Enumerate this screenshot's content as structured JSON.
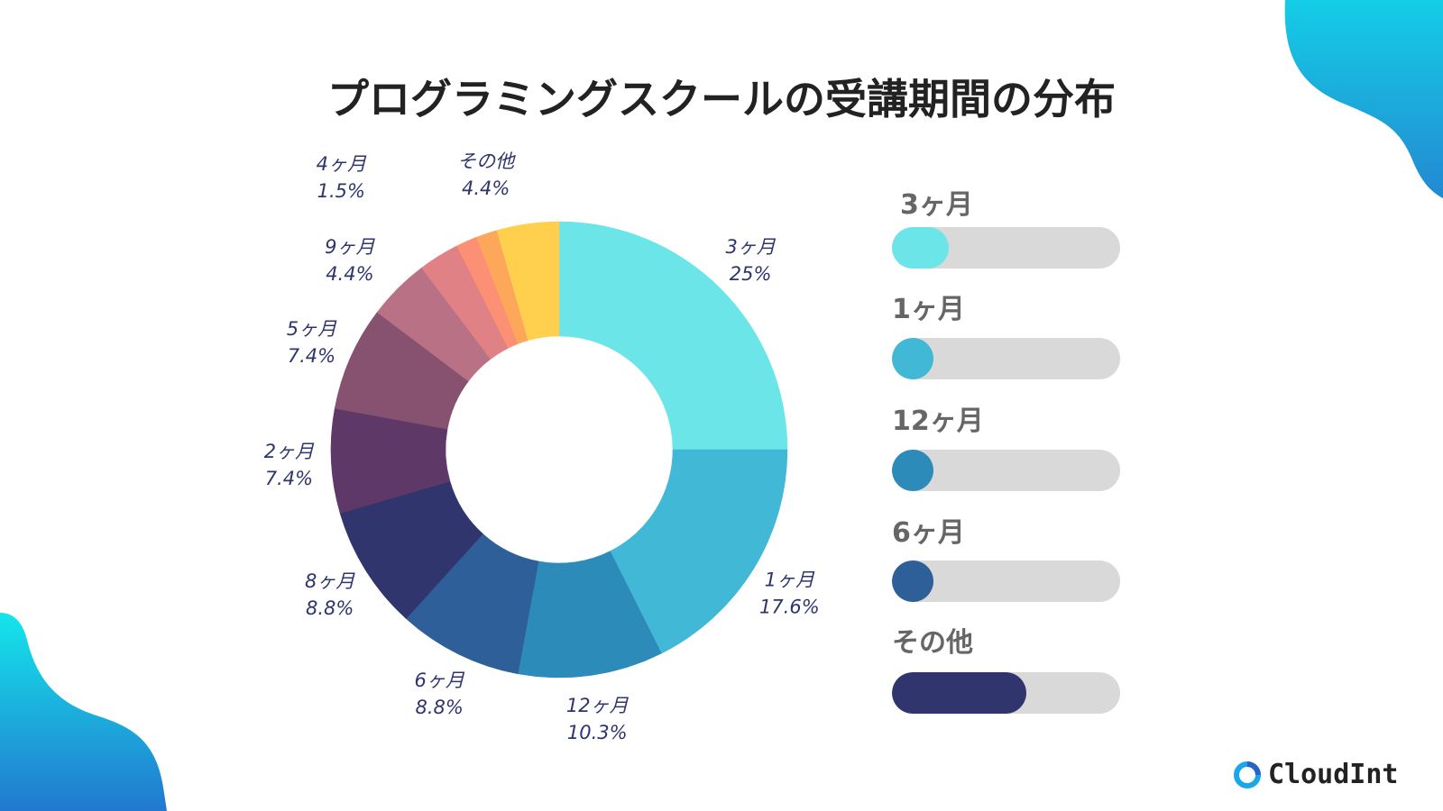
{
  "title": "プログラミングスクールの受講期間の分布",
  "chart_data": {
    "type": "pie",
    "variant": "donut",
    "title": "プログラミングスクールの受講期間の分布",
    "unit": "%",
    "slices": [
      {
        "label": "3ヶ月",
        "value": 25,
        "display": "25%",
        "color": "#6ce5e8"
      },
      {
        "label": "1ヶ月",
        "value": 17.6,
        "display": "17.6%",
        "color": "#41b8d5"
      },
      {
        "label": "12ヶ月",
        "value": 10.3,
        "display": "10.3%",
        "color": "#2d8bba"
      },
      {
        "label": "6ヶ月",
        "value": 8.8,
        "display": "8.8%",
        "color": "#2f5f98"
      },
      {
        "label": "8ヶ月",
        "value": 8.8,
        "display": "8.8%",
        "color": "#31356e"
      },
      {
        "label": "2ヶ月",
        "value": 7.4,
        "display": "7.4%",
        "color": "#5e3866"
      },
      {
        "label": "5ヶ月",
        "value": 7.4,
        "display": "7.4%",
        "color": "#87526f"
      },
      {
        "label": "9ヶ月",
        "value": 4.4,
        "display": "4.4%",
        "color": "#b87185"
      },
      {
        "label": "",
        "value": 2.9,
        "display": "",
        "color": "#e08285"
      },
      {
        "label": "4ヶ月",
        "value": 1.5,
        "display": "1.5%",
        "color": "#fc9074"
      },
      {
        "label": "",
        "value": 1.5,
        "display": "",
        "color": "#fda75b"
      },
      {
        "label": "その他",
        "value": 4.4,
        "display": "4.4%",
        "color": "#ffcf4d"
      }
    ],
    "legend_placement": "right"
  },
  "legend": {
    "items": [
      {
        "label": "3ヶ月",
        "fill_percent": 25,
        "color": "#6ce5e8"
      },
      {
        "label": "1ヶ月",
        "fill_percent": 18,
        "color": "#41b8d5"
      },
      {
        "label": "12ヶ月",
        "fill_percent": 18,
        "color": "#2d8bba"
      },
      {
        "label": "6ヶ月",
        "fill_percent": 18,
        "color": "#2f5f98"
      },
      {
        "label": "その他",
        "fill_percent": 59,
        "color": "#31356e"
      }
    ]
  },
  "brand": {
    "name": "CloudInt",
    "icon": "ring-logo-icon"
  },
  "colors": {
    "label_text": "#2e3470",
    "title_text": "#222222",
    "legend_text": "#666666",
    "track": "#d9d9d9"
  }
}
